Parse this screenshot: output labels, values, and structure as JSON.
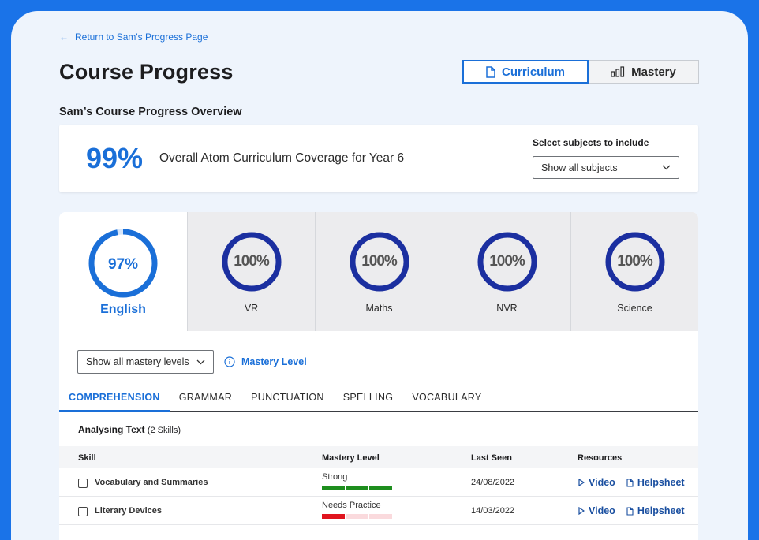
{
  "nav": {
    "back_label": "Return to Sam's Progress Page"
  },
  "header": {
    "title": "Course Progress",
    "view_toggle": {
      "curriculum": "Curriculum",
      "mastery": "Mastery",
      "active": "curriculum"
    }
  },
  "overview": {
    "section_title": "Sam’s Course Progress Overview",
    "percent": "99%",
    "coverage_text": "Overall Atom Curriculum Coverage for Year 6",
    "subjects_label": "Select subjects to include",
    "subjects_value": "Show all subjects"
  },
  "subjects": [
    {
      "name": "English",
      "percent_text": "97%",
      "percent": 97
    },
    {
      "name": "VR",
      "percent_text": "100%",
      "percent": 100
    },
    {
      "name": "Maths",
      "percent_text": "100%",
      "percent": 100
    },
    {
      "name": "NVR",
      "percent_text": "100%",
      "percent": 100
    },
    {
      "name": "Science",
      "percent_text": "100%",
      "percent": 100
    }
  ],
  "filters": {
    "mastery_select": "Show all mastery levels",
    "mastery_info": "Mastery Level"
  },
  "topic_tabs": [
    "COMPREHENSION",
    "GRAMMAR",
    "PUNCTUATION",
    "SPELLING",
    "VOCABULARY"
  ],
  "group": {
    "title": "Analysing Text",
    "count": "(2 Skills)"
  },
  "table": {
    "headers": {
      "skill": "Skill",
      "mastery": "Mastery Level",
      "last_seen": "Last Seen",
      "resources": "Resources"
    },
    "rows": [
      {
        "skill": "Vocabulary and Summaries",
        "mastery": "Strong",
        "mastery_segments": 3,
        "last_seen": "24/08/2022",
        "video": "Video",
        "helpsheet": "Helpsheet"
      },
      {
        "skill": "Literary Devices",
        "mastery": "Needs Practice",
        "mastery_segments": 1,
        "last_seen": "14/03/2022",
        "video": "Video",
        "helpsheet": "Helpsheet"
      }
    ]
  },
  "colors": {
    "accent": "#1a6fd8",
    "ring": "#1b2fa0",
    "strong": "#1e8e1e",
    "needs_practice": "#e0141e"
  }
}
